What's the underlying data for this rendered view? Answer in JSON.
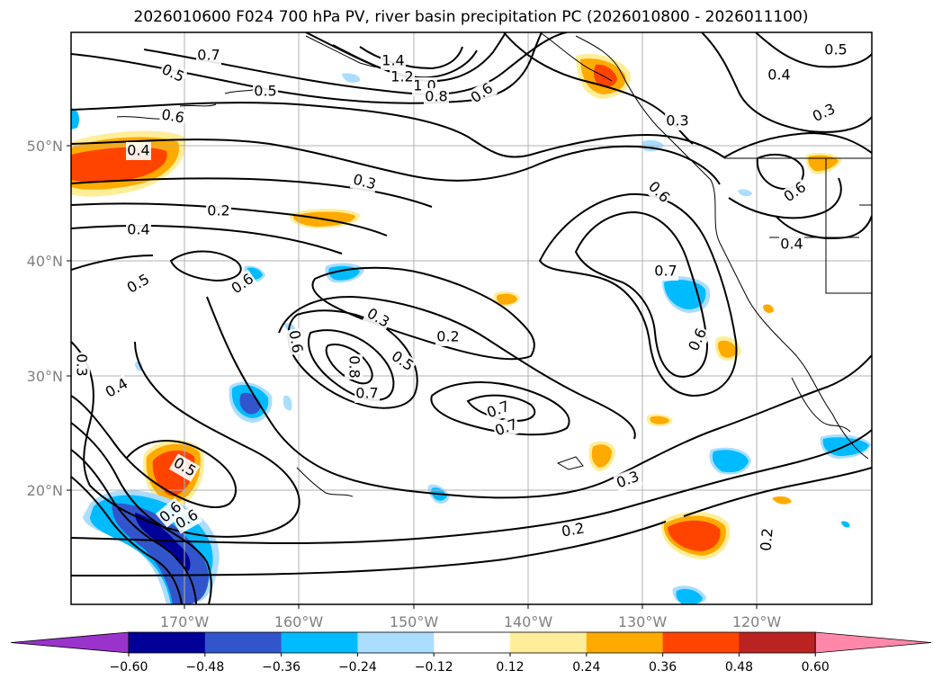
{
  "title": "2026010600 F024 700 hPa PV, river basin precipitation PC (2026010800 - 2026011100)",
  "map": {
    "lon_labels": [
      "170°W",
      "160°W",
      "150°W",
      "140°W",
      "130°W",
      "120°W"
    ],
    "lat_labels": [
      "50°N",
      "40°N",
      "30°N",
      "20°N"
    ],
    "contour_labels": [
      {
        "text": "0.7"
      },
      {
        "text": "0.5"
      },
      {
        "text": "0.5"
      },
      {
        "text": "1.4"
      },
      {
        "text": "1.2"
      },
      {
        "text": "1.0"
      },
      {
        "text": "0.8"
      },
      {
        "text": "0.6"
      },
      {
        "text": "0.5"
      },
      {
        "text": "0.4"
      },
      {
        "text": "0.3"
      },
      {
        "text": "0.6"
      },
      {
        "text": "0.4"
      },
      {
        "text": "0.3"
      },
      {
        "text": "0.2"
      },
      {
        "text": "0.4"
      },
      {
        "text": "0.6"
      },
      {
        "text": "0.6"
      },
      {
        "text": "0.4"
      },
      {
        "text": "0.5"
      },
      {
        "text": "0.6"
      },
      {
        "text": "0.3"
      },
      {
        "text": "0.2"
      },
      {
        "text": "0.6"
      },
      {
        "text": "0.5"
      },
      {
        "text": "0.8"
      },
      {
        "text": "0.7"
      },
      {
        "text": "0.7"
      },
      {
        "text": "0.7"
      },
      {
        "text": "0.6"
      },
      {
        "text": "0.7"
      },
      {
        "text": "0.3"
      },
      {
        "text": "0.4"
      },
      {
        "text": "0.5"
      },
      {
        "text": "0.6"
      },
      {
        "text": "0.6"
      },
      {
        "text": "0.3"
      },
      {
        "text": "0.2"
      },
      {
        "text": "0.2"
      },
      {
        "text": "0.3"
      }
    ]
  },
  "colorbar": {
    "colors": [
      "#9933cc",
      "#000099",
      "#3355cc",
      "#00bbff",
      "#aaddff",
      "#ffffff",
      "#ffee99",
      "#ffaa00",
      "#ff4400",
      "#bb2222",
      "#ff88aa"
    ],
    "tick_labels": [
      "−0.60",
      "−0.48",
      "−0.36",
      "−0.24",
      "−0.12",
      "0.12",
      "0.24",
      "0.36",
      "0.48",
      "0.60"
    ]
  }
}
